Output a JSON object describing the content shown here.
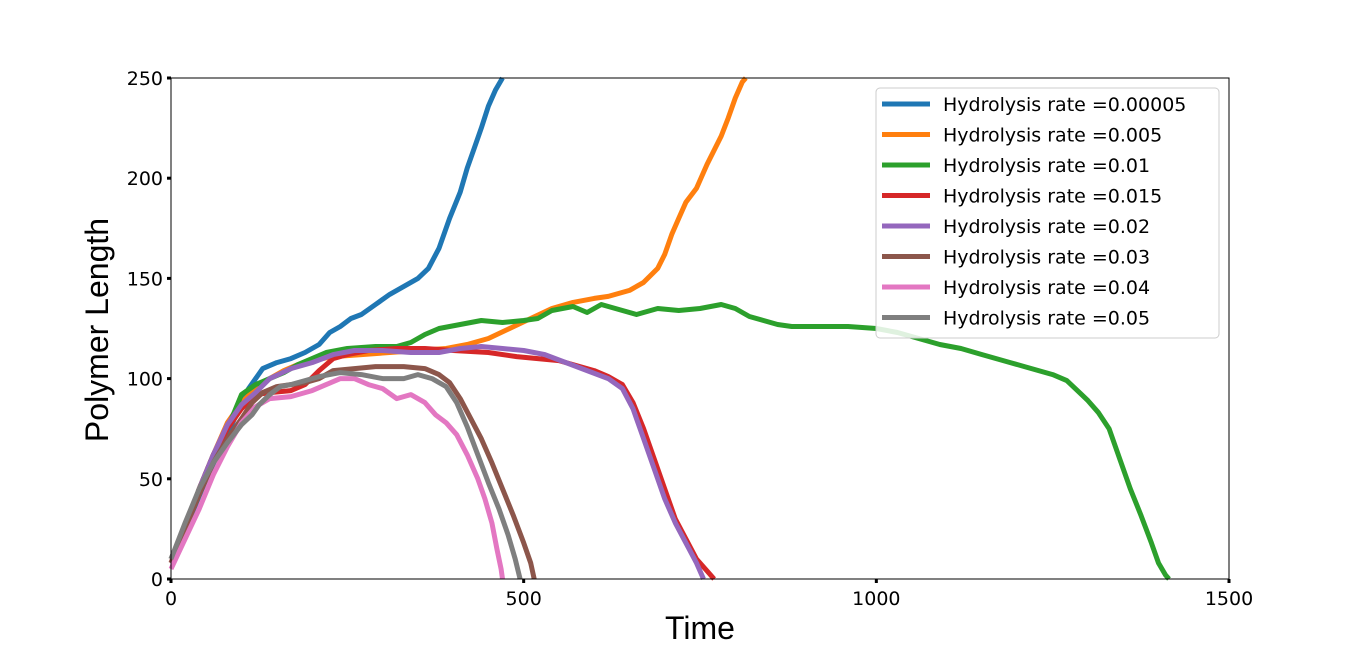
{
  "chart_data": {
    "type": "line",
    "title": "",
    "xlabel": "Time",
    "ylabel": "Polymer Length",
    "xlim": [
      0,
      1500
    ],
    "ylim": [
      0,
      250
    ],
    "xticks": [
      0,
      500,
      1000,
      1500
    ],
    "yticks": [
      0,
      50,
      100,
      150,
      200,
      250
    ],
    "grid": false,
    "legend_position": "top-right",
    "series": [
      {
        "name": "Hydrolysis rate =0.00005",
        "color": "#1f77b4",
        "points": [
          [
            0,
            10
          ],
          [
            15,
            20
          ],
          [
            30,
            33
          ],
          [
            50,
            50
          ],
          [
            70,
            65
          ],
          [
            90,
            80
          ],
          [
            110,
            95
          ],
          [
            130,
            105
          ],
          [
            150,
            108
          ],
          [
            170,
            110
          ],
          [
            190,
            113
          ],
          [
            210,
            117
          ],
          [
            225,
            123
          ],
          [
            240,
            126
          ],
          [
            255,
            130
          ],
          [
            270,
            132
          ],
          [
            290,
            137
          ],
          [
            310,
            142
          ],
          [
            330,
            146
          ],
          [
            350,
            150
          ],
          [
            365,
            155
          ],
          [
            380,
            165
          ],
          [
            395,
            180
          ],
          [
            410,
            193
          ],
          [
            420,
            205
          ],
          [
            430,
            215
          ],
          [
            440,
            225
          ],
          [
            450,
            236
          ],
          [
            460,
            244
          ],
          [
            470,
            250
          ]
        ]
      },
      {
        "name": "Hydrolysis rate =0.005",
        "color": "#ff7f0e",
        "points": [
          [
            0,
            10
          ],
          [
            20,
            25
          ],
          [
            40,
            45
          ],
          [
            60,
            62
          ],
          [
            80,
            78
          ],
          [
            100,
            88
          ],
          [
            120,
            95
          ],
          [
            140,
            100
          ],
          [
            160,
            104
          ],
          [
            180,
            107
          ],
          [
            200,
            109
          ],
          [
            230,
            111
          ],
          [
            270,
            112
          ],
          [
            310,
            113
          ],
          [
            350,
            114
          ],
          [
            390,
            115
          ],
          [
            420,
            117
          ],
          [
            450,
            120
          ],
          [
            480,
            125
          ],
          [
            510,
            130
          ],
          [
            540,
            135
          ],
          [
            570,
            138
          ],
          [
            600,
            140
          ],
          [
            620,
            141
          ],
          [
            650,
            144
          ],
          [
            670,
            148
          ],
          [
            690,
            155
          ],
          [
            700,
            162
          ],
          [
            710,
            172
          ],
          [
            720,
            180
          ],
          [
            730,
            188
          ],
          [
            745,
            195
          ],
          [
            760,
            207
          ],
          [
            780,
            221
          ],
          [
            790,
            230
          ],
          [
            800,
            240
          ],
          [
            810,
            248
          ],
          [
            815,
            250
          ]
        ]
      },
      {
        "name": "Hydrolysis rate =0.01",
        "color": "#2ca02c",
        "points": [
          [
            0,
            10
          ],
          [
            20,
            25
          ],
          [
            40,
            45
          ],
          [
            60,
            62
          ],
          [
            80,
            75
          ],
          [
            100,
            92
          ],
          [
            120,
            97
          ],
          [
            140,
            100
          ],
          [
            160,
            103
          ],
          [
            180,
            107
          ],
          [
            200,
            110
          ],
          [
            220,
            113
          ],
          [
            250,
            115
          ],
          [
            290,
            116
          ],
          [
            320,
            116
          ],
          [
            340,
            118
          ],
          [
            360,
            122
          ],
          [
            380,
            125
          ],
          [
            410,
            127
          ],
          [
            440,
            129
          ],
          [
            470,
            128
          ],
          [
            500,
            129
          ],
          [
            520,
            130
          ],
          [
            540,
            134
          ],
          [
            570,
            136
          ],
          [
            590,
            133
          ],
          [
            610,
            137
          ],
          [
            630,
            135
          ],
          [
            660,
            132
          ],
          [
            690,
            135
          ],
          [
            720,
            134
          ],
          [
            750,
            135
          ],
          [
            780,
            137
          ],
          [
            800,
            135
          ],
          [
            820,
            131
          ],
          [
            840,
            129
          ],
          [
            860,
            127
          ],
          [
            880,
            126
          ],
          [
            920,
            126
          ],
          [
            960,
            126
          ],
          [
            1000,
            125
          ],
          [
            1030,
            123
          ],
          [
            1060,
            120
          ],
          [
            1090,
            117
          ],
          [
            1120,
            115
          ],
          [
            1150,
            112
          ],
          [
            1170,
            110
          ],
          [
            1190,
            108
          ],
          [
            1210,
            106
          ],
          [
            1230,
            104
          ],
          [
            1250,
            102
          ],
          [
            1270,
            99
          ],
          [
            1285,
            94
          ],
          [
            1300,
            89
          ],
          [
            1315,
            83
          ],
          [
            1330,
            75
          ],
          [
            1345,
            60
          ],
          [
            1360,
            45
          ],
          [
            1375,
            32
          ],
          [
            1390,
            18
          ],
          [
            1400,
            8
          ],
          [
            1410,
            2
          ],
          [
            1415,
            0
          ]
        ]
      },
      {
        "name": "Hydrolysis rate =0.015",
        "color": "#d62728",
        "points": [
          [
            0,
            8
          ],
          [
            20,
            25
          ],
          [
            40,
            45
          ],
          [
            60,
            62
          ],
          [
            80,
            75
          ],
          [
            100,
            85
          ],
          [
            120,
            92
          ],
          [
            140,
            93
          ],
          [
            170,
            94
          ],
          [
            190,
            97
          ],
          [
            210,
            104
          ],
          [
            230,
            110
          ],
          [
            250,
            112
          ],
          [
            280,
            114
          ],
          [
            320,
            115
          ],
          [
            360,
            115
          ],
          [
            400,
            114
          ],
          [
            450,
            113
          ],
          [
            490,
            111
          ],
          [
            520,
            110
          ],
          [
            550,
            109
          ],
          [
            580,
            106
          ],
          [
            600,
            104
          ],
          [
            620,
            101
          ],
          [
            640,
            97
          ],
          [
            655,
            88
          ],
          [
            670,
            75
          ],
          [
            685,
            60
          ],
          [
            700,
            45
          ],
          [
            715,
            30
          ],
          [
            730,
            20
          ],
          [
            745,
            10
          ],
          [
            760,
            4
          ],
          [
            770,
            0
          ]
        ]
      },
      {
        "name": "Hydrolysis rate =0.02",
        "color": "#9467bd",
        "points": [
          [
            0,
            10
          ],
          [
            20,
            25
          ],
          [
            40,
            45
          ],
          [
            60,
            62
          ],
          [
            80,
            77
          ],
          [
            100,
            87
          ],
          [
            120,
            93
          ],
          [
            140,
            100
          ],
          [
            170,
            105
          ],
          [
            200,
            108
          ],
          [
            230,
            112
          ],
          [
            260,
            114
          ],
          [
            300,
            114
          ],
          [
            340,
            113
          ],
          [
            380,
            113
          ],
          [
            410,
            115
          ],
          [
            440,
            116
          ],
          [
            470,
            115
          ],
          [
            500,
            114
          ],
          [
            530,
            112
          ],
          [
            560,
            108
          ],
          [
            590,
            104
          ],
          [
            620,
            100
          ],
          [
            640,
            95
          ],
          [
            655,
            85
          ],
          [
            670,
            70
          ],
          [
            685,
            55
          ],
          [
            700,
            40
          ],
          [
            715,
            28
          ],
          [
            730,
            18
          ],
          [
            745,
            8
          ],
          [
            755,
            0
          ]
        ]
      },
      {
        "name": "Hydrolysis rate =0.03",
        "color": "#8c564b",
        "points": [
          [
            0,
            8
          ],
          [
            20,
            25
          ],
          [
            40,
            42
          ],
          [
            60,
            58
          ],
          [
            80,
            70
          ],
          [
            100,
            80
          ],
          [
            115,
            88
          ],
          [
            130,
            93
          ],
          [
            150,
            96
          ],
          [
            170,
            97
          ],
          [
            190,
            98
          ],
          [
            210,
            100
          ],
          [
            230,
            104
          ],
          [
            260,
            105
          ],
          [
            290,
            106
          ],
          [
            330,
            106
          ],
          [
            360,
            105
          ],
          [
            380,
            102
          ],
          [
            395,
            98
          ],
          [
            410,
            90
          ],
          [
            425,
            80
          ],
          [
            440,
            70
          ],
          [
            455,
            58
          ],
          [
            470,
            45
          ],
          [
            485,
            32
          ],
          [
            500,
            18
          ],
          [
            510,
            8
          ],
          [
            515,
            0
          ]
        ]
      },
      {
        "name": "Hydrolysis rate =0.04",
        "color": "#e377c2",
        "points": [
          [
            0,
            5
          ],
          [
            20,
            20
          ],
          [
            40,
            35
          ],
          [
            60,
            52
          ],
          [
            80,
            66
          ],
          [
            100,
            78
          ],
          [
            120,
            86
          ],
          [
            140,
            90
          ],
          [
            170,
            91
          ],
          [
            200,
            94
          ],
          [
            220,
            97
          ],
          [
            240,
            100
          ],
          [
            260,
            100
          ],
          [
            280,
            97
          ],
          [
            300,
            95
          ],
          [
            320,
            90
          ],
          [
            340,
            92
          ],
          [
            360,
            88
          ],
          [
            375,
            82
          ],
          [
            390,
            78
          ],
          [
            405,
            72
          ],
          [
            420,
            62
          ],
          [
            435,
            50
          ],
          [
            445,
            40
          ],
          [
            455,
            28
          ],
          [
            462,
            15
          ],
          [
            468,
            5
          ],
          [
            470,
            0
          ]
        ]
      },
      {
        "name": "Hydrolysis rate =0.05",
        "color": "#7f7f7f",
        "points": [
          [
            0,
            10
          ],
          [
            20,
            28
          ],
          [
            40,
            45
          ],
          [
            60,
            58
          ],
          [
            80,
            68
          ],
          [
            100,
            77
          ],
          [
            115,
            82
          ],
          [
            125,
            87
          ],
          [
            140,
            92
          ],
          [
            155,
            96
          ],
          [
            170,
            97
          ],
          [
            190,
            99
          ],
          [
            210,
            101
          ],
          [
            240,
            103
          ],
          [
            270,
            102
          ],
          [
            300,
            100
          ],
          [
            330,
            100
          ],
          [
            350,
            102
          ],
          [
            370,
            100
          ],
          [
            390,
            96
          ],
          [
            405,
            88
          ],
          [
            420,
            76
          ],
          [
            435,
            62
          ],
          [
            450,
            48
          ],
          [
            465,
            35
          ],
          [
            478,
            22
          ],
          [
            488,
            10
          ],
          [
            495,
            0
          ]
        ]
      }
    ]
  }
}
